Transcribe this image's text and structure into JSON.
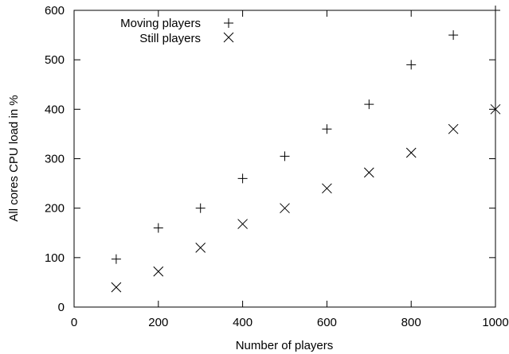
{
  "chart_data": {
    "type": "scatter",
    "title": "",
    "xlabel": "Number of players",
    "ylabel": "All cores CPU load in %",
    "xlim": [
      0,
      1000
    ],
    "ylim": [
      0,
      600
    ],
    "x_ticks": [
      0,
      200,
      400,
      600,
      800,
      1000
    ],
    "y_ticks": [
      0,
      100,
      200,
      300,
      400,
      500,
      600
    ],
    "grid": false,
    "legend_position": "top-left",
    "series": [
      {
        "name": "Moving players",
        "marker": "plus",
        "x": [
          100,
          200,
          300,
          400,
          500,
          600,
          700,
          800,
          900,
          1000
        ],
        "y": [
          97,
          160,
          200,
          260,
          305,
          360,
          410,
          490,
          550,
          600
        ]
      },
      {
        "name": "Still players",
        "marker": "cross",
        "x": [
          100,
          200,
          300,
          400,
          500,
          600,
          700,
          800,
          900,
          1000
        ],
        "y": [
          40,
          72,
          120,
          168,
          200,
          240,
          272,
          312,
          360,
          400
        ]
      }
    ]
  }
}
